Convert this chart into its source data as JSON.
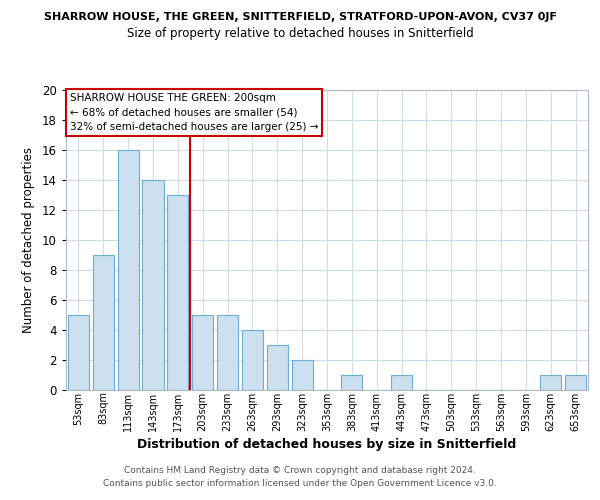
{
  "title_main": "SHARROW HOUSE, THE GREEN, SNITTERFIELD, STRATFORD-UPON-AVON, CV37 0JF",
  "title_sub": "Size of property relative to detached houses in Snitterfield",
  "xlabel": "Distribution of detached houses by size in Snitterfield",
  "ylabel": "Number of detached properties",
  "bar_labels": [
    "53sqm",
    "83sqm",
    "113sqm",
    "143sqm",
    "173sqm",
    "203sqm",
    "233sqm",
    "263sqm",
    "293sqm",
    "323sqm",
    "353sqm",
    "383sqm",
    "413sqm",
    "443sqm",
    "473sqm",
    "503sqm",
    "533sqm",
    "563sqm",
    "593sqm",
    "623sqm",
    "653sqm"
  ],
  "bar_values": [
    5,
    9,
    16,
    14,
    13,
    5,
    5,
    4,
    3,
    2,
    0,
    1,
    0,
    1,
    0,
    0,
    0,
    0,
    0,
    1,
    1
  ],
  "bar_color": "#cce0f0",
  "bar_edge_color": "#6baed6",
  "reference_line_index": 5,
  "reference_line_color": "#cc0000",
  "ylim": [
    0,
    20
  ],
  "yticks": [
    0,
    2,
    4,
    6,
    8,
    10,
    12,
    14,
    16,
    18,
    20
  ],
  "annotation_title": "SHARROW HOUSE THE GREEN: 200sqm",
  "annotation_line1": "← 68% of detached houses are smaller (54)",
  "annotation_line2": "32% of semi-detached houses are larger (25) →",
  "annotation_box_color": "#ffffff",
  "annotation_box_edge": "#cc0000",
  "footer_line1": "Contains HM Land Registry data © Crown copyright and database right 2024.",
  "footer_line2": "Contains public sector information licensed under the Open Government Licence v3.0.",
  "background_color": "#ffffff",
  "grid_color": "#d0dcea"
}
